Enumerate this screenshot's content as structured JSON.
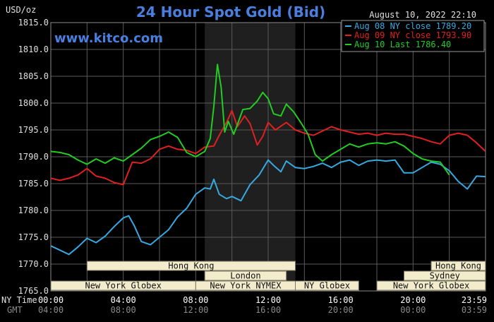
{
  "chart_data": {
    "type": "line",
    "title": "24 Hour Spot Gold (Bid)",
    "ylabel": "USD/oz",
    "datestamp": "August 10, 2022 22:10",
    "brand": "www.kitco.com",
    "ylim": [
      1765,
      1815
    ],
    "y_ticks": [
      "1815.0",
      "1810.0",
      "1805.0",
      "1800.0",
      "1795.0",
      "1790.0",
      "1785.0",
      "1780.0",
      "1775.0",
      "1770.0",
      "1765.0"
    ],
    "xlim": [
      0,
      24
    ],
    "time_row_label": "NY Time",
    "gmt_row_label": "GMT",
    "x_ticks_ny": [
      "00:00",
      "04:00",
      "08:00",
      "12:00",
      "16:00",
      "20:00",
      "23:59"
    ],
    "x_ticks_gmt": [
      "04:00",
      "08:00",
      "12:00",
      "16:00",
      "20:00",
      "00:00",
      "03:59"
    ],
    "grid": true,
    "shaded_session": [
      8.5,
      13.5
    ],
    "legend_position": "top-right",
    "sessions": [
      {
        "label": "Hong Kong",
        "start": 2.0,
        "end": 13.5,
        "row": 0
      },
      {
        "label": "Hong Kong",
        "start": 21.0,
        "end": 24.0,
        "row": 0
      },
      {
        "label": "London",
        "start": 8.5,
        "end": 13.0,
        "row": 1
      },
      {
        "label": "Sydney",
        "start": 19.5,
        "end": 24.0,
        "row": 1
      },
      {
        "label": "New York Globex",
        "start": 0.0,
        "end": 8.0,
        "row": 2
      },
      {
        "label": "New York NYMEX",
        "start": 8.0,
        "end": 13.5,
        "row": 2
      },
      {
        "label": "NY Globex",
        "start": 13.5,
        "end": 17.0,
        "row": 2
      },
      {
        "label": "New York Globex",
        "start": 18.0,
        "end": 24.0,
        "row": 2
      }
    ],
    "series": [
      {
        "name": "Aug 08 NY close 1789.20",
        "color": "#36a9e1",
        "points": [
          [
            0,
            1773.4
          ],
          [
            0.5,
            1772.6
          ],
          [
            1.0,
            1771.8
          ],
          [
            1.5,
            1773.2
          ],
          [
            2.0,
            1774.8
          ],
          [
            2.5,
            1774.0
          ],
          [
            3.0,
            1775.2
          ],
          [
            3.5,
            1777.0
          ],
          [
            4.0,
            1778.6
          ],
          [
            4.3,
            1779.0
          ],
          [
            4.6,
            1777.2
          ],
          [
            5.0,
            1774.2
          ],
          [
            5.5,
            1773.6
          ],
          [
            6.0,
            1775.0
          ],
          [
            6.5,
            1776.4
          ],
          [
            7.0,
            1778.8
          ],
          [
            7.5,
            1780.4
          ],
          [
            8.0,
            1783.0
          ],
          [
            8.5,
            1784.2
          ],
          [
            8.8,
            1784.0
          ],
          [
            9.0,
            1785.8
          ],
          [
            9.3,
            1783.0
          ],
          [
            9.7,
            1782.2
          ],
          [
            10.0,
            1782.6
          ],
          [
            10.5,
            1781.8
          ],
          [
            11.0,
            1784.8
          ],
          [
            11.5,
            1786.6
          ],
          [
            12.0,
            1789.4
          ],
          [
            12.3,
            1788.4
          ],
          [
            12.7,
            1787.2
          ],
          [
            13.0,
            1789.2
          ],
          [
            13.5,
            1788.0
          ],
          [
            14.0,
            1787.8
          ],
          [
            14.5,
            1788.2
          ],
          [
            15.0,
            1788.8
          ],
          [
            15.5,
            1788.0
          ],
          [
            16.0,
            1789.0
          ],
          [
            16.5,
            1789.4
          ],
          [
            17.0,
            1788.4
          ],
          [
            17.5,
            1789.2
          ],
          [
            18.0,
            1789.4
          ],
          [
            18.5,
            1789.2
          ],
          [
            19.0,
            1789.4
          ],
          [
            19.5,
            1787.0
          ],
          [
            20.0,
            1787.0
          ],
          [
            20.5,
            1788.0
          ],
          [
            21.0,
            1789.0
          ],
          [
            21.5,
            1788.6
          ],
          [
            22.0,
            1787.4
          ],
          [
            22.5,
            1785.4
          ],
          [
            23.0,
            1784.0
          ],
          [
            23.5,
            1786.4
          ],
          [
            24.0,
            1786.3
          ]
        ]
      },
      {
        "name": "Aug 09 NY close 1793.90",
        "color": "#e02020",
        "points": [
          [
            0,
            1786.0
          ],
          [
            0.5,
            1785.6
          ],
          [
            1.0,
            1786.0
          ],
          [
            1.5,
            1786.6
          ],
          [
            2.0,
            1787.8
          ],
          [
            2.5,
            1786.4
          ],
          [
            3.0,
            1786.0
          ],
          [
            3.5,
            1785.2
          ],
          [
            4.0,
            1784.8
          ],
          [
            4.5,
            1789.0
          ],
          [
            5.0,
            1788.8
          ],
          [
            5.5,
            1789.6
          ],
          [
            6.0,
            1791.4
          ],
          [
            6.5,
            1792.0
          ],
          [
            7.0,
            1791.4
          ],
          [
            7.5,
            1791.2
          ],
          [
            8.0,
            1790.6
          ],
          [
            8.5,
            1791.8
          ],
          [
            9.0,
            1792.0
          ],
          [
            9.3,
            1794.0
          ],
          [
            9.7,
            1796.4
          ],
          [
            10.0,
            1798.6
          ],
          [
            10.3,
            1795.6
          ],
          [
            10.7,
            1797.6
          ],
          [
            11.0,
            1796.2
          ],
          [
            11.4,
            1792.2
          ],
          [
            11.7,
            1793.8
          ],
          [
            12.0,
            1796.4
          ],
          [
            12.4,
            1795.0
          ],
          [
            13.0,
            1796.4
          ],
          [
            13.5,
            1795.0
          ],
          [
            14.0,
            1794.4
          ],
          [
            14.5,
            1794.0
          ],
          [
            15.0,
            1794.8
          ],
          [
            15.5,
            1795.6
          ],
          [
            16.0,
            1795.0
          ],
          [
            16.5,
            1794.6
          ],
          [
            17.0,
            1794.2
          ],
          [
            17.5,
            1794.4
          ],
          [
            18.0,
            1794.0
          ],
          [
            18.5,
            1794.4
          ],
          [
            19.0,
            1794.2
          ],
          [
            19.5,
            1794.2
          ],
          [
            20.0,
            1793.8
          ],
          [
            20.5,
            1793.4
          ],
          [
            21.0,
            1792.8
          ],
          [
            21.5,
            1792.4
          ],
          [
            22.0,
            1794.0
          ],
          [
            22.5,
            1794.4
          ],
          [
            23.0,
            1794.0
          ],
          [
            23.5,
            1792.6
          ],
          [
            24.0,
            1791.0
          ]
        ]
      },
      {
        "name": "Aug 10 Last 1786.40",
        "color": "#22cc22",
        "points": [
          [
            0,
            1791.0
          ],
          [
            0.5,
            1790.8
          ],
          [
            1.0,
            1790.4
          ],
          [
            1.5,
            1789.4
          ],
          [
            2.0,
            1788.6
          ],
          [
            2.5,
            1789.6
          ],
          [
            3.0,
            1788.8
          ],
          [
            3.5,
            1789.8
          ],
          [
            4.0,
            1789.2
          ],
          [
            4.5,
            1790.4
          ],
          [
            5.0,
            1791.6
          ],
          [
            5.5,
            1793.2
          ],
          [
            6.0,
            1793.8
          ],
          [
            6.5,
            1794.6
          ],
          [
            7.0,
            1793.6
          ],
          [
            7.5,
            1790.8
          ],
          [
            8.0,
            1790.0
          ],
          [
            8.5,
            1791.0
          ],
          [
            8.8,
            1793.4
          ],
          [
            9.0,
            1799.4
          ],
          [
            9.2,
            1807.2
          ],
          [
            9.4,
            1803.0
          ],
          [
            9.6,
            1794.6
          ],
          [
            9.8,
            1796.6
          ],
          [
            10.1,
            1794.2
          ],
          [
            10.3,
            1796.0
          ],
          [
            10.6,
            1798.8
          ],
          [
            11.0,
            1799.0
          ],
          [
            11.4,
            1800.4
          ],
          [
            11.7,
            1802.0
          ],
          [
            12.0,
            1800.8
          ],
          [
            12.3,
            1798.0
          ],
          [
            12.7,
            1797.6
          ],
          [
            13.0,
            1799.8
          ],
          [
            13.4,
            1798.4
          ],
          [
            13.8,
            1796.4
          ],
          [
            14.2,
            1794.2
          ],
          [
            14.6,
            1790.4
          ],
          [
            15.0,
            1789.2
          ],
          [
            15.5,
            1790.4
          ],
          [
            16.0,
            1791.4
          ],
          [
            16.5,
            1792.4
          ],
          [
            17.0,
            1791.8
          ],
          [
            17.5,
            1792.4
          ],
          [
            18.0,
            1792.6
          ],
          [
            18.5,
            1792.4
          ],
          [
            19.0,
            1792.8
          ],
          [
            19.5,
            1792.0
          ],
          [
            20.0,
            1790.6
          ],
          [
            20.5,
            1789.6
          ],
          [
            21.0,
            1789.2
          ],
          [
            21.5,
            1789.0
          ],
          [
            22.0,
            1786.6
          ]
        ]
      }
    ]
  }
}
